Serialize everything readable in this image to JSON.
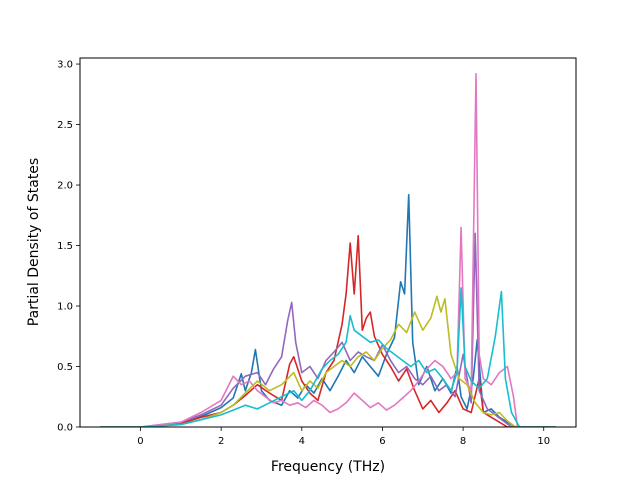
{
  "chart_data": {
    "type": "line",
    "title": "",
    "xlabel": "Frequency (THz)",
    "ylabel": "Partial Density of States",
    "xlim": [
      -1.5,
      10.8
    ],
    "ylim": [
      0.0,
      3.05
    ],
    "xticks": [
      0,
      2,
      4,
      6,
      8,
      10
    ],
    "yticks": [
      0.0,
      0.5,
      1.0,
      1.5,
      2.0,
      2.5,
      3.0
    ],
    "xtick_labels": [
      "0",
      "2",
      "4",
      "6",
      "8",
      "10"
    ],
    "ytick_labels": [
      "0.0",
      "0.5",
      "1.0",
      "1.5",
      "2.0",
      "2.5",
      "3.0"
    ],
    "grid": false,
    "legend": "none",
    "series": [
      {
        "color": "#1f77b4",
        "points": [
          [
            -1.0,
            0
          ],
          [
            0,
            0
          ],
          [
            0.8,
            0.02
          ],
          [
            1.2,
            0.05
          ],
          [
            1.6,
            0.1
          ],
          [
            2.0,
            0.16
          ],
          [
            2.3,
            0.24
          ],
          [
            2.5,
            0.44
          ],
          [
            2.6,
            0.3
          ],
          [
            2.75,
            0.45
          ],
          [
            2.85,
            0.64
          ],
          [
            3.0,
            0.3
          ],
          [
            3.2,
            0.22
          ],
          [
            3.5,
            0.18
          ],
          [
            3.7,
            0.3
          ],
          [
            3.9,
            0.24
          ],
          [
            4.1,
            0.35
          ],
          [
            4.3,
            0.28
          ],
          [
            4.5,
            0.4
          ],
          [
            4.7,
            0.3
          ],
          [
            4.9,
            0.42
          ],
          [
            5.1,
            0.55
          ],
          [
            5.3,
            0.45
          ],
          [
            5.5,
            0.58
          ],
          [
            5.7,
            0.5
          ],
          [
            5.9,
            0.42
          ],
          [
            6.1,
            0.6
          ],
          [
            6.3,
            0.74
          ],
          [
            6.45,
            1.2
          ],
          [
            6.55,
            1.1
          ],
          [
            6.65,
            1.92
          ],
          [
            6.75,
            0.7
          ],
          [
            6.9,
            0.35
          ],
          [
            7.1,
            0.5
          ],
          [
            7.3,
            0.3
          ],
          [
            7.5,
            0.4
          ],
          [
            7.7,
            0.28
          ],
          [
            7.85,
            0.5
          ],
          [
            7.95,
            0.25
          ],
          [
            8.1,
            0.15
          ],
          [
            8.25,
            0.4
          ],
          [
            8.35,
            0.72
          ],
          [
            8.5,
            0.12
          ],
          [
            8.7,
            0.15
          ],
          [
            8.9,
            0.08
          ],
          [
            9.1,
            0.04
          ],
          [
            9.3,
            0
          ],
          [
            10.3,
            0
          ]
        ]
      },
      {
        "color": "#d62728",
        "points": [
          [
            -1.0,
            0
          ],
          [
            0,
            0
          ],
          [
            1.0,
            0.03
          ],
          [
            1.5,
            0.08
          ],
          [
            2.0,
            0.12
          ],
          [
            2.3,
            0.18
          ],
          [
            2.6,
            0.26
          ],
          [
            2.9,
            0.35
          ],
          [
            3.2,
            0.28
          ],
          [
            3.5,
            0.22
          ],
          [
            3.7,
            0.52
          ],
          [
            3.8,
            0.58
          ],
          [
            4.0,
            0.38
          ],
          [
            4.2,
            0.28
          ],
          [
            4.4,
            0.22
          ],
          [
            4.6,
            0.45
          ],
          [
            4.8,
            0.55
          ],
          [
            5.0,
            0.85
          ],
          [
            5.1,
            1.1
          ],
          [
            5.2,
            1.52
          ],
          [
            5.3,
            1.1
          ],
          [
            5.4,
            1.58
          ],
          [
            5.5,
            0.8
          ],
          [
            5.6,
            0.9
          ],
          [
            5.7,
            0.95
          ],
          [
            5.8,
            0.75
          ],
          [
            6.0,
            0.6
          ],
          [
            6.2,
            0.5
          ],
          [
            6.4,
            0.38
          ],
          [
            6.6,
            0.48
          ],
          [
            6.8,
            0.3
          ],
          [
            7.0,
            0.15
          ],
          [
            7.2,
            0.22
          ],
          [
            7.4,
            0.12
          ],
          [
            7.6,
            0.2
          ],
          [
            7.8,
            0.3
          ],
          [
            8.0,
            0.15
          ],
          [
            8.2,
            0.12
          ],
          [
            8.4,
            0.4
          ],
          [
            8.5,
            0.12
          ],
          [
            8.7,
            0.08
          ],
          [
            8.9,
            0.04
          ],
          [
            9.1,
            0
          ],
          [
            10.3,
            0
          ]
        ]
      },
      {
        "color": "#9467bd",
        "points": [
          [
            -1.0,
            0
          ],
          [
            0,
            0
          ],
          [
            1.0,
            0.04
          ],
          [
            1.5,
            0.1
          ],
          [
            2.0,
            0.18
          ],
          [
            2.3,
            0.32
          ],
          [
            2.6,
            0.42
          ],
          [
            2.9,
            0.45
          ],
          [
            3.1,
            0.35
          ],
          [
            3.3,
            0.48
          ],
          [
            3.5,
            0.58
          ],
          [
            3.65,
            0.88
          ],
          [
            3.75,
            1.03
          ],
          [
            3.85,
            0.7
          ],
          [
            4.0,
            0.45
          ],
          [
            4.2,
            0.5
          ],
          [
            4.4,
            0.4
          ],
          [
            4.6,
            0.55
          ],
          [
            4.8,
            0.62
          ],
          [
            5.0,
            0.7
          ],
          [
            5.2,
            0.55
          ],
          [
            5.4,
            0.62
          ],
          [
            5.6,
            0.58
          ],
          [
            5.8,
            0.55
          ],
          [
            6.0,
            0.68
          ],
          [
            6.2,
            0.55
          ],
          [
            6.4,
            0.45
          ],
          [
            6.6,
            0.5
          ],
          [
            6.8,
            0.4
          ],
          [
            7.0,
            0.35
          ],
          [
            7.2,
            0.42
          ],
          [
            7.4,
            0.3
          ],
          [
            7.6,
            0.35
          ],
          [
            7.8,
            0.25
          ],
          [
            8.0,
            0.6
          ],
          [
            8.2,
            0.2
          ],
          [
            8.3,
            1.6
          ],
          [
            8.4,
            0.3
          ],
          [
            8.6,
            0.15
          ],
          [
            8.8,
            0.1
          ],
          [
            9.0,
            0.05
          ],
          [
            9.2,
            0
          ],
          [
            10.3,
            0
          ]
        ]
      },
      {
        "color": "#e377c2",
        "points": [
          [
            -1.0,
            0
          ],
          [
            0,
            0
          ],
          [
            1.0,
            0.04
          ],
          [
            1.5,
            0.12
          ],
          [
            2.0,
            0.22
          ],
          [
            2.3,
            0.42
          ],
          [
            2.5,
            0.35
          ],
          [
            2.7,
            0.38
          ],
          [
            2.9,
            0.3
          ],
          [
            3.1,
            0.25
          ],
          [
            3.3,
            0.2
          ],
          [
            3.5,
            0.22
          ],
          [
            3.7,
            0.18
          ],
          [
            3.9,
            0.2
          ],
          [
            4.1,
            0.16
          ],
          [
            4.3,
            0.22
          ],
          [
            4.5,
            0.18
          ],
          [
            4.7,
            0.12
          ],
          [
            4.9,
            0.15
          ],
          [
            5.1,
            0.2
          ],
          [
            5.3,
            0.28
          ],
          [
            5.5,
            0.22
          ],
          [
            5.7,
            0.16
          ],
          [
            5.9,
            0.2
          ],
          [
            6.1,
            0.14
          ],
          [
            6.3,
            0.18
          ],
          [
            6.5,
            0.24
          ],
          [
            6.7,
            0.3
          ],
          [
            6.9,
            0.38
          ],
          [
            7.1,
            0.48
          ],
          [
            7.3,
            0.55
          ],
          [
            7.5,
            0.5
          ],
          [
            7.7,
            0.4
          ],
          [
            7.85,
            0.45
          ],
          [
            7.95,
            1.65
          ],
          [
            8.05,
            0.4
          ],
          [
            8.2,
            0.3
          ],
          [
            8.32,
            2.92
          ],
          [
            8.4,
            0.6
          ],
          [
            8.5,
            0.4
          ],
          [
            8.7,
            0.35
          ],
          [
            8.9,
            0.45
          ],
          [
            9.1,
            0.5
          ],
          [
            9.25,
            0.25
          ],
          [
            9.35,
            0
          ],
          [
            10.3,
            0
          ]
        ]
      },
      {
        "color": "#bcbd22",
        "points": [
          [
            -1.0,
            0
          ],
          [
            0,
            0
          ],
          [
            1.0,
            0.02
          ],
          [
            1.5,
            0.06
          ],
          [
            2.0,
            0.12
          ],
          [
            2.3,
            0.18
          ],
          [
            2.6,
            0.28
          ],
          [
            2.9,
            0.38
          ],
          [
            3.2,
            0.3
          ],
          [
            3.5,
            0.35
          ],
          [
            3.8,
            0.45
          ],
          [
            4.0,
            0.3
          ],
          [
            4.2,
            0.38
          ],
          [
            4.4,
            0.32
          ],
          [
            4.6,
            0.45
          ],
          [
            4.8,
            0.5
          ],
          [
            5.0,
            0.55
          ],
          [
            5.2,
            0.5
          ],
          [
            5.4,
            0.58
          ],
          [
            5.6,
            0.62
          ],
          [
            5.8,
            0.55
          ],
          [
            6.0,
            0.65
          ],
          [
            6.2,
            0.72
          ],
          [
            6.4,
            0.85
          ],
          [
            6.6,
            0.78
          ],
          [
            6.8,
            0.95
          ],
          [
            7.0,
            0.8
          ],
          [
            7.2,
            0.9
          ],
          [
            7.35,
            1.08
          ],
          [
            7.45,
            0.95
          ],
          [
            7.55,
            1.06
          ],
          [
            7.7,
            0.6
          ],
          [
            7.9,
            0.4
          ],
          [
            8.1,
            0.35
          ],
          [
            8.3,
            0.2
          ],
          [
            8.5,
            0.12
          ],
          [
            8.7,
            0.1
          ],
          [
            8.9,
            0.12
          ],
          [
            9.1,
            0.05
          ],
          [
            9.3,
            0
          ],
          [
            10.3,
            0
          ]
        ]
      },
      {
        "color": "#17becf",
        "points": [
          [
            -1.0,
            0
          ],
          [
            0,
            0
          ],
          [
            1.0,
            0.02
          ],
          [
            1.5,
            0.06
          ],
          [
            2.0,
            0.1
          ],
          [
            2.3,
            0.14
          ],
          [
            2.6,
            0.18
          ],
          [
            2.9,
            0.15
          ],
          [
            3.2,
            0.2
          ],
          [
            3.5,
            0.25
          ],
          [
            3.8,
            0.3
          ],
          [
            4.0,
            0.22
          ],
          [
            4.2,
            0.3
          ],
          [
            4.5,
            0.48
          ],
          [
            4.7,
            0.55
          ],
          [
            4.9,
            0.6
          ],
          [
            5.1,
            0.7
          ],
          [
            5.2,
            0.92
          ],
          [
            5.3,
            0.8
          ],
          [
            5.5,
            0.75
          ],
          [
            5.7,
            0.7
          ],
          [
            5.9,
            0.72
          ],
          [
            6.1,
            0.65
          ],
          [
            6.3,
            0.6
          ],
          [
            6.5,
            0.55
          ],
          [
            6.7,
            0.5
          ],
          [
            6.9,
            0.55
          ],
          [
            7.1,
            0.45
          ],
          [
            7.3,
            0.48
          ],
          [
            7.5,
            0.4
          ],
          [
            7.7,
            0.3
          ],
          [
            7.85,
            0.45
          ],
          [
            7.95,
            1.15
          ],
          [
            8.05,
            0.5
          ],
          [
            8.2,
            0.38
          ],
          [
            8.4,
            0.32
          ],
          [
            8.6,
            0.4
          ],
          [
            8.8,
            0.75
          ],
          [
            8.95,
            1.12
          ],
          [
            9.05,
            0.4
          ],
          [
            9.2,
            0.12
          ],
          [
            9.4,
            0
          ],
          [
            10.3,
            0
          ]
        ]
      }
    ]
  }
}
